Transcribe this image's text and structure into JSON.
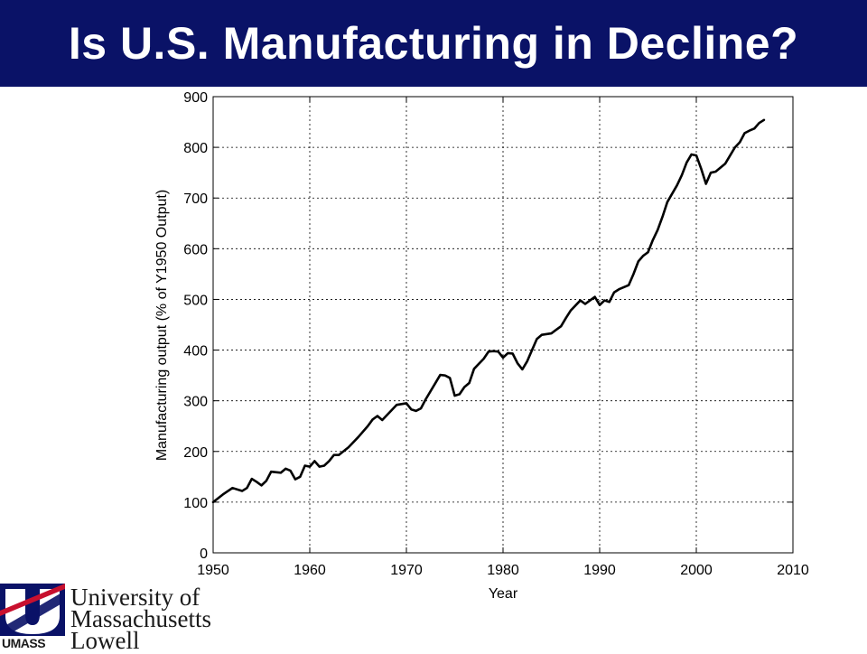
{
  "slide": {
    "title": "Is U.S. Manufacturing in Decline?"
  },
  "logo": {
    "line1": "University of",
    "line2": "Massachusetts",
    "line3": "Lowell",
    "wordmark": "UMASS",
    "colors": {
      "navy": "#0a1267",
      "red": "#c8102e"
    }
  },
  "chart_data": {
    "type": "line",
    "title": "",
    "xlabel": "Year",
    "ylabel": "Manufacturing output (% of Y1950 Output)",
    "xlim": [
      1950,
      2010
    ],
    "ylim": [
      0,
      900
    ],
    "xticks": [
      1950,
      1960,
      1970,
      1980,
      1990,
      2000,
      2010
    ],
    "yticks": [
      0,
      100,
      200,
      300,
      400,
      500,
      600,
      700,
      800,
      900
    ],
    "grid": true,
    "grid_style": "dotted",
    "line_color": "#000000",
    "series": [
      {
        "x": [
          1950,
          1951,
          1952,
          1953,
          1953.5,
          1954,
          1954.5,
          1955,
          1955.5,
          1956,
          1957,
          1957.5,
          1958,
          1958.5,
          1959,
          1959.5,
          1960,
          1960.5,
          1961,
          1961.5,
          1962,
          1962.5,
          1963,
          1964,
          1965,
          1966,
          1966.5,
          1967,
          1967.5,
          1968,
          1969,
          1970,
          1970.5,
          1971,
          1971.5,
          1972,
          1973,
          1973.5,
          1974,
          1974.5,
          1975,
          1975.5,
          1976,
          1976.5,
          1977,
          1978,
          1978.5,
          1979,
          1979.5,
          1980,
          1980.5,
          1981,
          1981.5,
          1982,
          1982.5,
          1983,
          1983.5,
          1984,
          1985,
          1985.5,
          1986,
          1986.5,
          1987,
          1988,
          1988.5,
          1989,
          1989.5,
          1990,
          1990.5,
          1991,
          1991.5,
          1992,
          1993,
          1993.5,
          1994,
          1994.5,
          1995,
          1995.5,
          1996,
          1996.5,
          1997,
          1998,
          1998.5,
          1999,
          1999.5,
          2000,
          2000.5,
          2001,
          2001.5,
          2002,
          2003,
          2003.5,
          2004,
          2004.5,
          2005,
          2005.5,
          2006,
          2006.5,
          2007
        ],
        "y": [
          100,
          115,
          128,
          122,
          128,
          146,
          140,
          133,
          142,
          160,
          158,
          166,
          162,
          145,
          150,
          172,
          170,
          181,
          170,
          172,
          181,
          193,
          193,
          208,
          228,
          250,
          263,
          270,
          262,
          272,
          292,
          295,
          283,
          280,
          285,
          303,
          335,
          351,
          350,
          345,
          310,
          313,
          327,
          335,
          363,
          383,
          397,
          398,
          397,
          385,
          394,
          393,
          374,
          362,
          378,
          400,
          422,
          430,
          433,
          440,
          447,
          463,
          478,
          498,
          491,
          498,
          505,
          489,
          498,
          495,
          514,
          520,
          528,
          550,
          575,
          586,
          593,
          617,
          637,
          663,
          692,
          725,
          745,
          770,
          786,
          784,
          758,
          728,
          750,
          752,
          768,
          784,
          800,
          810,
          828,
          833,
          837,
          848,
          854
        ]
      }
    ]
  }
}
